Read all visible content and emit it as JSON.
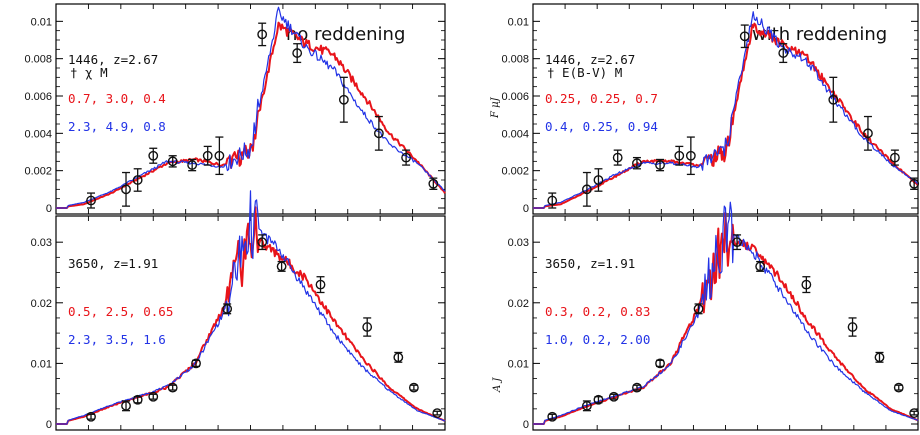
{
  "figure": {
    "left_heading": "no reddening",
    "right_heading": "with reddening",
    "right_ylabel_top": "F μJ",
    "right_ylabel_bottom": "A J"
  },
  "colors": {
    "model_a": "#e8141a",
    "model_b": "#2233e6",
    "data": "#111111"
  },
  "chart_data": [
    {
      "type": "line",
      "panel": "top-left",
      "title": "no reddening",
      "ylim": [
        0,
        0.0105
      ],
      "ytick_labels": [
        "0",
        "0.002",
        "0.004",
        "0.006",
        "0.008",
        "0.01"
      ],
      "object_label": "1446, z=2.67",
      "param_header": "† χ M",
      "series": [
        {
          "label": "0.7, 3.0, 0.4",
          "color": "#e8141a",
          "values": [
            0.0,
            0.0002,
            0.0008,
            0.0016,
            0.0024,
            0.0026,
            0.0023,
            0.003,
            0.0098,
            0.0088,
            0.0082,
            0.0062,
            0.004,
            0.0025,
            0.0008
          ]
        },
        {
          "label": "2.3, 4.9, 0.8",
          "color": "#2233e6",
          "values": [
            0.0,
            0.0003,
            0.0009,
            0.0017,
            0.0025,
            0.0024,
            0.0022,
            0.0032,
            0.0105,
            0.0086,
            0.0074,
            0.0052,
            0.0034,
            0.0024,
            0.0009
          ]
        }
      ],
      "points": [
        {
          "x": 0.09,
          "y": 0.0004,
          "err": 0.0004
        },
        {
          "x": 0.18,
          "y": 0.001,
          "err": 0.0009
        },
        {
          "x": 0.21,
          "y": 0.0015,
          "err": 0.0006
        },
        {
          "x": 0.25,
          "y": 0.0028,
          "err": 0.0004
        },
        {
          "x": 0.3,
          "y": 0.0025,
          "err": 0.0003
        },
        {
          "x": 0.35,
          "y": 0.0023,
          "err": 0.0003
        },
        {
          "x": 0.39,
          "y": 0.0028,
          "err": 0.0005
        },
        {
          "x": 0.42,
          "y": 0.0028,
          "err": 0.001
        },
        {
          "x": 0.53,
          "y": 0.0093,
          "err": 0.0006
        },
        {
          "x": 0.62,
          "y": 0.0083,
          "err": 0.0005
        },
        {
          "x": 0.74,
          "y": 0.0058,
          "err": 0.0012
        },
        {
          "x": 0.83,
          "y": 0.004,
          "err": 0.0009
        },
        {
          "x": 0.9,
          "y": 0.0027,
          "err": 0.0004
        },
        {
          "x": 0.97,
          "y": 0.0013,
          "err": 0.0003
        }
      ]
    },
    {
      "type": "line",
      "panel": "bottom-left",
      "ylim": [
        0,
        0.033
      ],
      "ytick_labels": [
        "0",
        "0.01",
        "0.02",
        "0.03"
      ],
      "object_label": "3650, z=1.91",
      "series": [
        {
          "label": "0.5, 2.5, 0.65",
          "color": "#e8141a",
          "values": [
            0.0,
            0.0012,
            0.003,
            0.0045,
            0.006,
            0.01,
            0.019,
            0.031,
            0.028,
            0.024,
            0.017,
            0.011,
            0.006,
            0.0025,
            0.0005
          ]
        },
        {
          "label": "2.3, 3.5, 1.6",
          "color": "#2233e6",
          "values": [
            0.0,
            0.0014,
            0.0032,
            0.0046,
            0.0062,
            0.0098,
            0.018,
            0.033,
            0.029,
            0.022,
            0.015,
            0.0095,
            0.0055,
            0.0022,
            0.0005
          ]
        }
      ],
      "points": [
        {
          "x": 0.09,
          "y": 0.0012,
          "err": 0.0004
        },
        {
          "x": 0.18,
          "y": 0.003,
          "err": 0.0008
        },
        {
          "x": 0.21,
          "y": 0.004,
          "err": 0.0005
        },
        {
          "x": 0.25,
          "y": 0.0045,
          "err": 0.0004
        },
        {
          "x": 0.3,
          "y": 0.006,
          "err": 0.0004
        },
        {
          "x": 0.36,
          "y": 0.01,
          "err": 0.0005
        },
        {
          "x": 0.44,
          "y": 0.019,
          "err": 0.0008
        },
        {
          "x": 0.53,
          "y": 0.03,
          "err": 0.0012
        },
        {
          "x": 0.58,
          "y": 0.026,
          "err": 0.0008
        },
        {
          "x": 0.68,
          "y": 0.023,
          "err": 0.0013
        },
        {
          "x": 0.8,
          "y": 0.016,
          "err": 0.0015
        },
        {
          "x": 0.88,
          "y": 0.011,
          "err": 0.0008
        },
        {
          "x": 0.92,
          "y": 0.006,
          "err": 0.0004
        },
        {
          "x": 0.98,
          "y": 0.0018,
          "err": 0.0003
        }
      ]
    },
    {
      "type": "line",
      "panel": "top-right",
      "title": "with reddening",
      "ylim": [
        0,
        0.0105
      ],
      "ytick_labels": [
        "0",
        "0.002",
        "0.004",
        "0.006",
        "0.008",
        "0.01"
      ],
      "object_label": "1446, z=2.67",
      "param_header": "† E(B-V) M",
      "series": [
        {
          "label": "0.25, 0.25, 0.7",
          "color": "#e8141a",
          "values": [
            0.0,
            0.0002,
            0.0009,
            0.0017,
            0.0025,
            0.0025,
            0.0023,
            0.003,
            0.0098,
            0.0088,
            0.008,
            0.006,
            0.004,
            0.0025,
            0.0012
          ]
        },
        {
          "label": "0.4, 0.25, 0.94",
          "color": "#2233e6",
          "values": [
            0.0,
            0.0003,
            0.001,
            0.0018,
            0.0024,
            0.0024,
            0.0022,
            0.0032,
            0.0104,
            0.0087,
            0.0078,
            0.0057,
            0.0038,
            0.0024,
            0.0013
          ]
        }
      ],
      "points": [
        {
          "x": 0.05,
          "y": 0.0004,
          "err": 0.0004
        },
        {
          "x": 0.14,
          "y": 0.001,
          "err": 0.0009
        },
        {
          "x": 0.17,
          "y": 0.0015,
          "err": 0.0006
        },
        {
          "x": 0.22,
          "y": 0.0027,
          "err": 0.0004
        },
        {
          "x": 0.27,
          "y": 0.0024,
          "err": 0.0003
        },
        {
          "x": 0.33,
          "y": 0.0023,
          "err": 0.0003
        },
        {
          "x": 0.38,
          "y": 0.0028,
          "err": 0.0005
        },
        {
          "x": 0.41,
          "y": 0.0028,
          "err": 0.001
        },
        {
          "x": 0.55,
          "y": 0.0092,
          "err": 0.0006
        },
        {
          "x": 0.65,
          "y": 0.0083,
          "err": 0.0005
        },
        {
          "x": 0.78,
          "y": 0.0058,
          "err": 0.0012
        },
        {
          "x": 0.87,
          "y": 0.004,
          "err": 0.0009
        },
        {
          "x": 0.94,
          "y": 0.0027,
          "err": 0.0004
        },
        {
          "x": 0.99,
          "y": 0.0013,
          "err": 0.0003
        }
      ]
    },
    {
      "type": "line",
      "panel": "bottom-right",
      "ylim": [
        0,
        0.033
      ],
      "ytick_labels": [
        "0",
        "0.01",
        "0.02",
        "0.03"
      ],
      "object_label": "3650, z=1.91",
      "series": [
        {
          "label": "0.3, 0.2, 0.83",
          "color": "#e8141a",
          "values": [
            0.0,
            0.0012,
            0.003,
            0.0045,
            0.006,
            0.01,
            0.019,
            0.031,
            0.029,
            0.024,
            0.017,
            0.011,
            0.006,
            0.0025,
            0.0006
          ]
        },
        {
          "label": "1.0, 0.2, 2.00",
          "color": "#2233e6",
          "values": [
            0.0,
            0.0014,
            0.0032,
            0.0046,
            0.0062,
            0.0098,
            0.018,
            0.032,
            0.0285,
            0.022,
            0.015,
            0.0095,
            0.0055,
            0.0022,
            0.0006
          ]
        }
      ],
      "points": [
        {
          "x": 0.05,
          "y": 0.0012,
          "err": 0.0004
        },
        {
          "x": 0.14,
          "y": 0.003,
          "err": 0.0008
        },
        {
          "x": 0.17,
          "y": 0.004,
          "err": 0.0005
        },
        {
          "x": 0.21,
          "y": 0.0045,
          "err": 0.0004
        },
        {
          "x": 0.27,
          "y": 0.006,
          "err": 0.0004
        },
        {
          "x": 0.33,
          "y": 0.01,
          "err": 0.0005
        },
        {
          "x": 0.43,
          "y": 0.019,
          "err": 0.0008
        },
        {
          "x": 0.53,
          "y": 0.03,
          "err": 0.0012
        },
        {
          "x": 0.59,
          "y": 0.026,
          "err": 0.0008
        },
        {
          "x": 0.71,
          "y": 0.023,
          "err": 0.0013
        },
        {
          "x": 0.83,
          "y": 0.016,
          "err": 0.0015
        },
        {
          "x": 0.9,
          "y": 0.011,
          "err": 0.0008
        },
        {
          "x": 0.95,
          "y": 0.006,
          "err": 0.0004
        },
        {
          "x": 0.99,
          "y": 0.0018,
          "err": 0.0003
        }
      ]
    }
  ]
}
